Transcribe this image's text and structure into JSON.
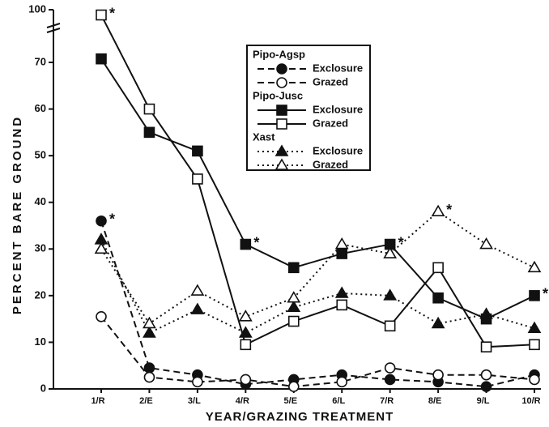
{
  "chart_data": {
    "type": "line",
    "xlabel": "YEAR/GRAZING TREATMENT",
    "ylabel": "PERCENT BARE GROUND",
    "categories": [
      "1/R",
      "2/E",
      "3/L",
      "4/R",
      "5/E",
      "6/L",
      "7/R",
      "8/E",
      "9/L",
      "10/R"
    ],
    "ylim": [
      0,
      100
    ],
    "yticks": [
      0,
      10,
      20,
      30,
      40,
      50,
      60,
      70,
      100
    ],
    "axis_break": [
      70,
      100
    ],
    "series": [
      {
        "group": "Pipo-Agsp",
        "name": "Exclosure",
        "color": "#111111",
        "marker": "circle",
        "filled": true,
        "dash": "dashed",
        "values": [
          36,
          4.5,
          3,
          1,
          2,
          3,
          2,
          1.5,
          0.5,
          3
        ]
      },
      {
        "group": "Pipo-Agsp",
        "name": "Grazed",
        "color": "#111111",
        "marker": "circle",
        "filled": false,
        "dash": "dashed",
        "values": [
          15.5,
          2.5,
          1.5,
          2,
          0.5,
          1.5,
          4.5,
          3,
          3,
          2
        ]
      },
      {
        "group": "Pipo-Jusc",
        "name": "Exclosure",
        "color": "#111111",
        "marker": "square",
        "filled": true,
        "dash": "solid",
        "values": [
          72,
          55,
          51,
          31,
          26,
          29,
          31,
          19.5,
          15,
          20
        ]
      },
      {
        "group": "Pipo-Jusc",
        "name": "Grazed",
        "color": "#111111",
        "marker": "square",
        "filled": false,
        "dash": "solid",
        "values": [
          97,
          60,
          45,
          9.5,
          14.5,
          18,
          13.5,
          26,
          9,
          9.5
        ]
      },
      {
        "group": "Xast",
        "name": "Exclosure",
        "color": "#111111",
        "marker": "triangle",
        "filled": true,
        "dash": "dotted",
        "values": [
          32,
          12,
          17,
          12,
          17.5,
          20.5,
          20,
          14,
          16,
          13
        ]
      },
      {
        "group": "Xast",
        "name": "Grazed",
        "color": "#111111",
        "marker": "triangle",
        "filled": false,
        "dash": "dotted",
        "values": [
          30,
          14,
          21,
          15.5,
          19.5,
          31,
          29,
          38,
          31,
          26
        ]
      }
    ],
    "annotations": [
      {
        "text": "*",
        "series": 3,
        "index": 0
      },
      {
        "text": "*",
        "series": 0,
        "index": 0
      },
      {
        "text": "*",
        "series": 2,
        "index": 3
      },
      {
        "text": "*",
        "series": 2,
        "index": 6
      },
      {
        "text": "*",
        "series": 5,
        "index": 7
      },
      {
        "text": "*",
        "series": 2,
        "index": 9
      }
    ]
  }
}
